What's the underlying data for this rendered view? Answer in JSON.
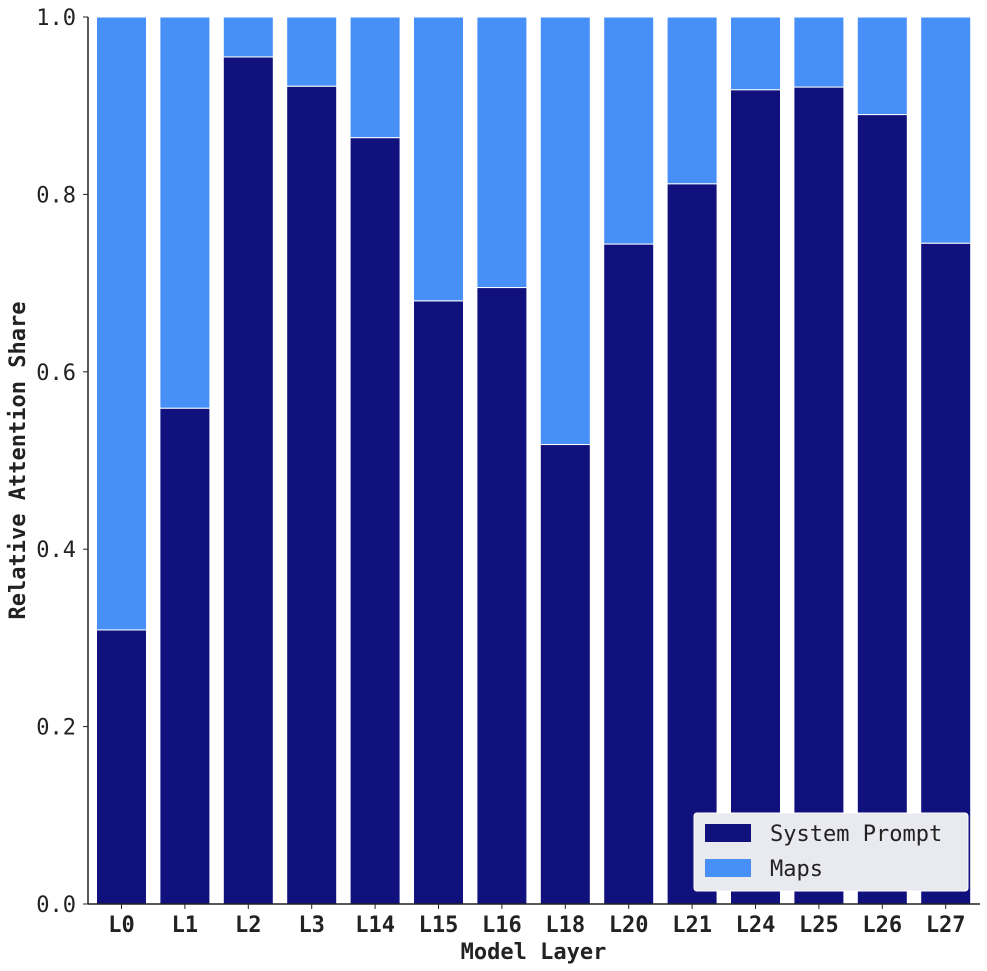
{
  "chart_data": {
    "type": "bar",
    "stacked": true,
    "categories": [
      "L0",
      "L1",
      "L2",
      "L3",
      "L14",
      "L15",
      "L16",
      "L18",
      "L20",
      "L21",
      "L24",
      "L25",
      "L26",
      "L27"
    ],
    "series": [
      {
        "name": "System Prompt",
        "color": "#11117e",
        "values": [
          0.309,
          0.559,
          0.955,
          0.922,
          0.864,
          0.68,
          0.695,
          0.518,
          0.744,
          0.812,
          0.918,
          0.921,
          0.89,
          0.745
        ]
      },
      {
        "name": "Maps",
        "color": "#4690f8",
        "values": [
          0.691,
          0.441,
          0.045,
          0.078,
          0.136,
          0.32,
          0.305,
          0.482,
          0.256,
          0.188,
          0.082,
          0.079,
          0.11,
          0.255
        ]
      }
    ],
    "xlabel": "Model Layer",
    "ylabel": "Relative Attention Share",
    "ylim": [
      0,
      1.0
    ],
    "yticks": [
      "0.0",
      "0.2",
      "0.4",
      "0.6",
      "0.8",
      "1.0"
    ],
    "legend_position": "bottom-right",
    "grid": false
  }
}
